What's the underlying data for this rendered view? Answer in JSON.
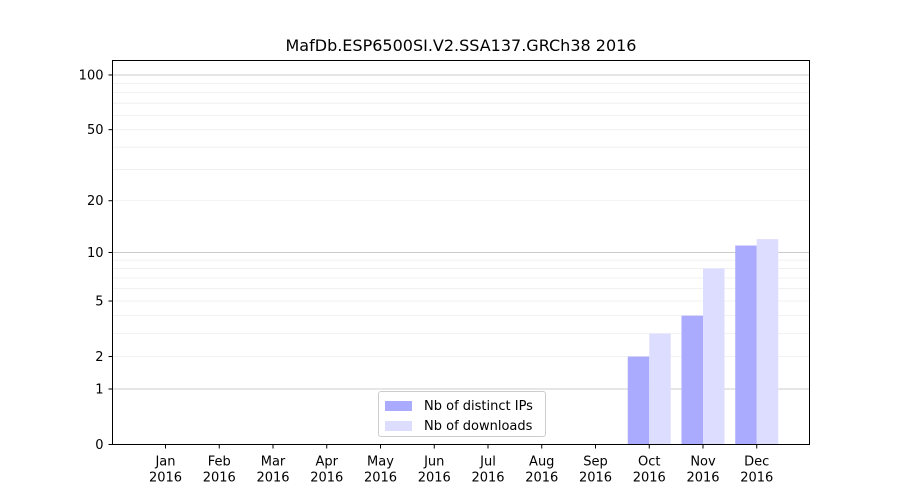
{
  "chart_data": {
    "type": "bar",
    "title": "MafDb.ESP6500SI.V2.SSA137.GRCh38 2016",
    "xlabel": "",
    "ylabel": "",
    "y_scale": "log1p",
    "y_ticks": [
      0,
      1,
      2,
      5,
      10,
      20,
      50,
      100
    ],
    "y_tick_labels": [
      "0",
      "1",
      "2",
      "5",
      "10",
      "20",
      "50",
      "100"
    ],
    "ylim": [
      0,
      120
    ],
    "categories": [
      "Jan\n2016",
      "Feb\n2016",
      "Mar\n2016",
      "Apr\n2016",
      "May\n2016",
      "Jun\n2016",
      "Jul\n2016",
      "Aug\n2016",
      "Sep\n2016",
      "Oct\n2016",
      "Nov\n2016",
      "Dec\n2016"
    ],
    "category_lines": [
      [
        "Jan",
        "2016"
      ],
      [
        "Feb",
        "2016"
      ],
      [
        "Mar",
        "2016"
      ],
      [
        "Apr",
        "2016"
      ],
      [
        "May",
        "2016"
      ],
      [
        "Jun",
        "2016"
      ],
      [
        "Jul",
        "2016"
      ],
      [
        "Aug",
        "2016"
      ],
      [
        "Sep",
        "2016"
      ],
      [
        "Oct",
        "2016"
      ],
      [
        "Nov",
        "2016"
      ],
      [
        "Dec",
        "2016"
      ]
    ],
    "series": [
      {
        "name": "Nb of distinct IPs",
        "color": "#aaaaff",
        "values": [
          0,
          0,
          0,
          0,
          0,
          0,
          0,
          0,
          0,
          2,
          4,
          11
        ]
      },
      {
        "name": "Nb of downloads",
        "color": "#ddddff",
        "values": [
          0,
          0,
          0,
          0,
          0,
          0,
          0,
          0,
          0,
          3,
          8,
          12
        ]
      }
    ],
    "grid": true,
    "legend_position": "bottom-center"
  }
}
